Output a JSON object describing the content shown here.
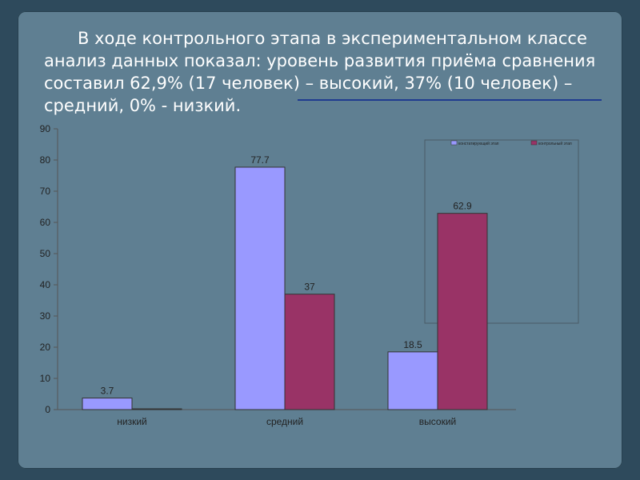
{
  "slide": {
    "title": "В ходе  контрольного этапа в экспериментальном классе анализ данных показал: уровень развития приёма сравнения составил 62,9% (17 человек) – высокий, 37% (10 человек) – средний, 0% - низкий."
  },
  "colors": {
    "series1": "#9999ff",
    "series2": "#993366",
    "background": "#5f7f92",
    "frame": "#2e4a5c"
  },
  "chart_data": {
    "type": "bar",
    "categories": [
      "низкий",
      "средний",
      "высокий"
    ],
    "series": [
      {
        "name": "констатирующий этап",
        "values": [
          3.7,
          77.7,
          18.5
        ],
        "labels": [
          "3.7",
          "77.7",
          "18.5"
        ]
      },
      {
        "name": "контрольный этап",
        "values": [
          0,
          37,
          62.9
        ],
        "labels": [
          "",
          "37",
          "62.9"
        ]
      }
    ],
    "y_ticks": [
      "0",
      "10",
      "20",
      "30",
      "40",
      "50",
      "60",
      "70",
      "80",
      "90"
    ],
    "ylim": [
      0,
      90
    ],
    "grid": false,
    "legend": "top-right"
  }
}
